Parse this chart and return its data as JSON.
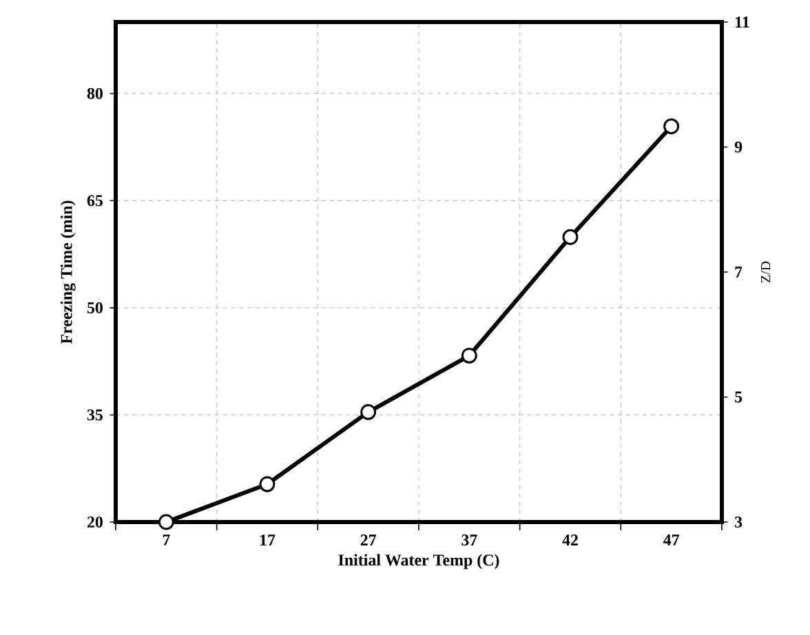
{
  "chart_data": {
    "type": "line",
    "categories": [
      "7",
      "17",
      "27",
      "37",
      "42",
      "47"
    ],
    "series": [
      {
        "color": "#000000",
        "values": [
          20,
          25.3,
          35.4,
          43.3,
          59.9,
          75.4
        ]
      }
    ],
    "xlabel": "Initial Water Temp (C)",
    "ylabel": "Freezing Time (min)",
    "y2label": "Z/D",
    "ylim": [
      20,
      90
    ],
    "yticks": [
      20,
      35,
      50,
      65,
      80
    ],
    "y2lim": [
      3,
      11
    ],
    "y2ticks": [
      3,
      5,
      7,
      9,
      11
    ],
    "grid": true,
    "marker": "circle",
    "line_style": "solid"
  }
}
